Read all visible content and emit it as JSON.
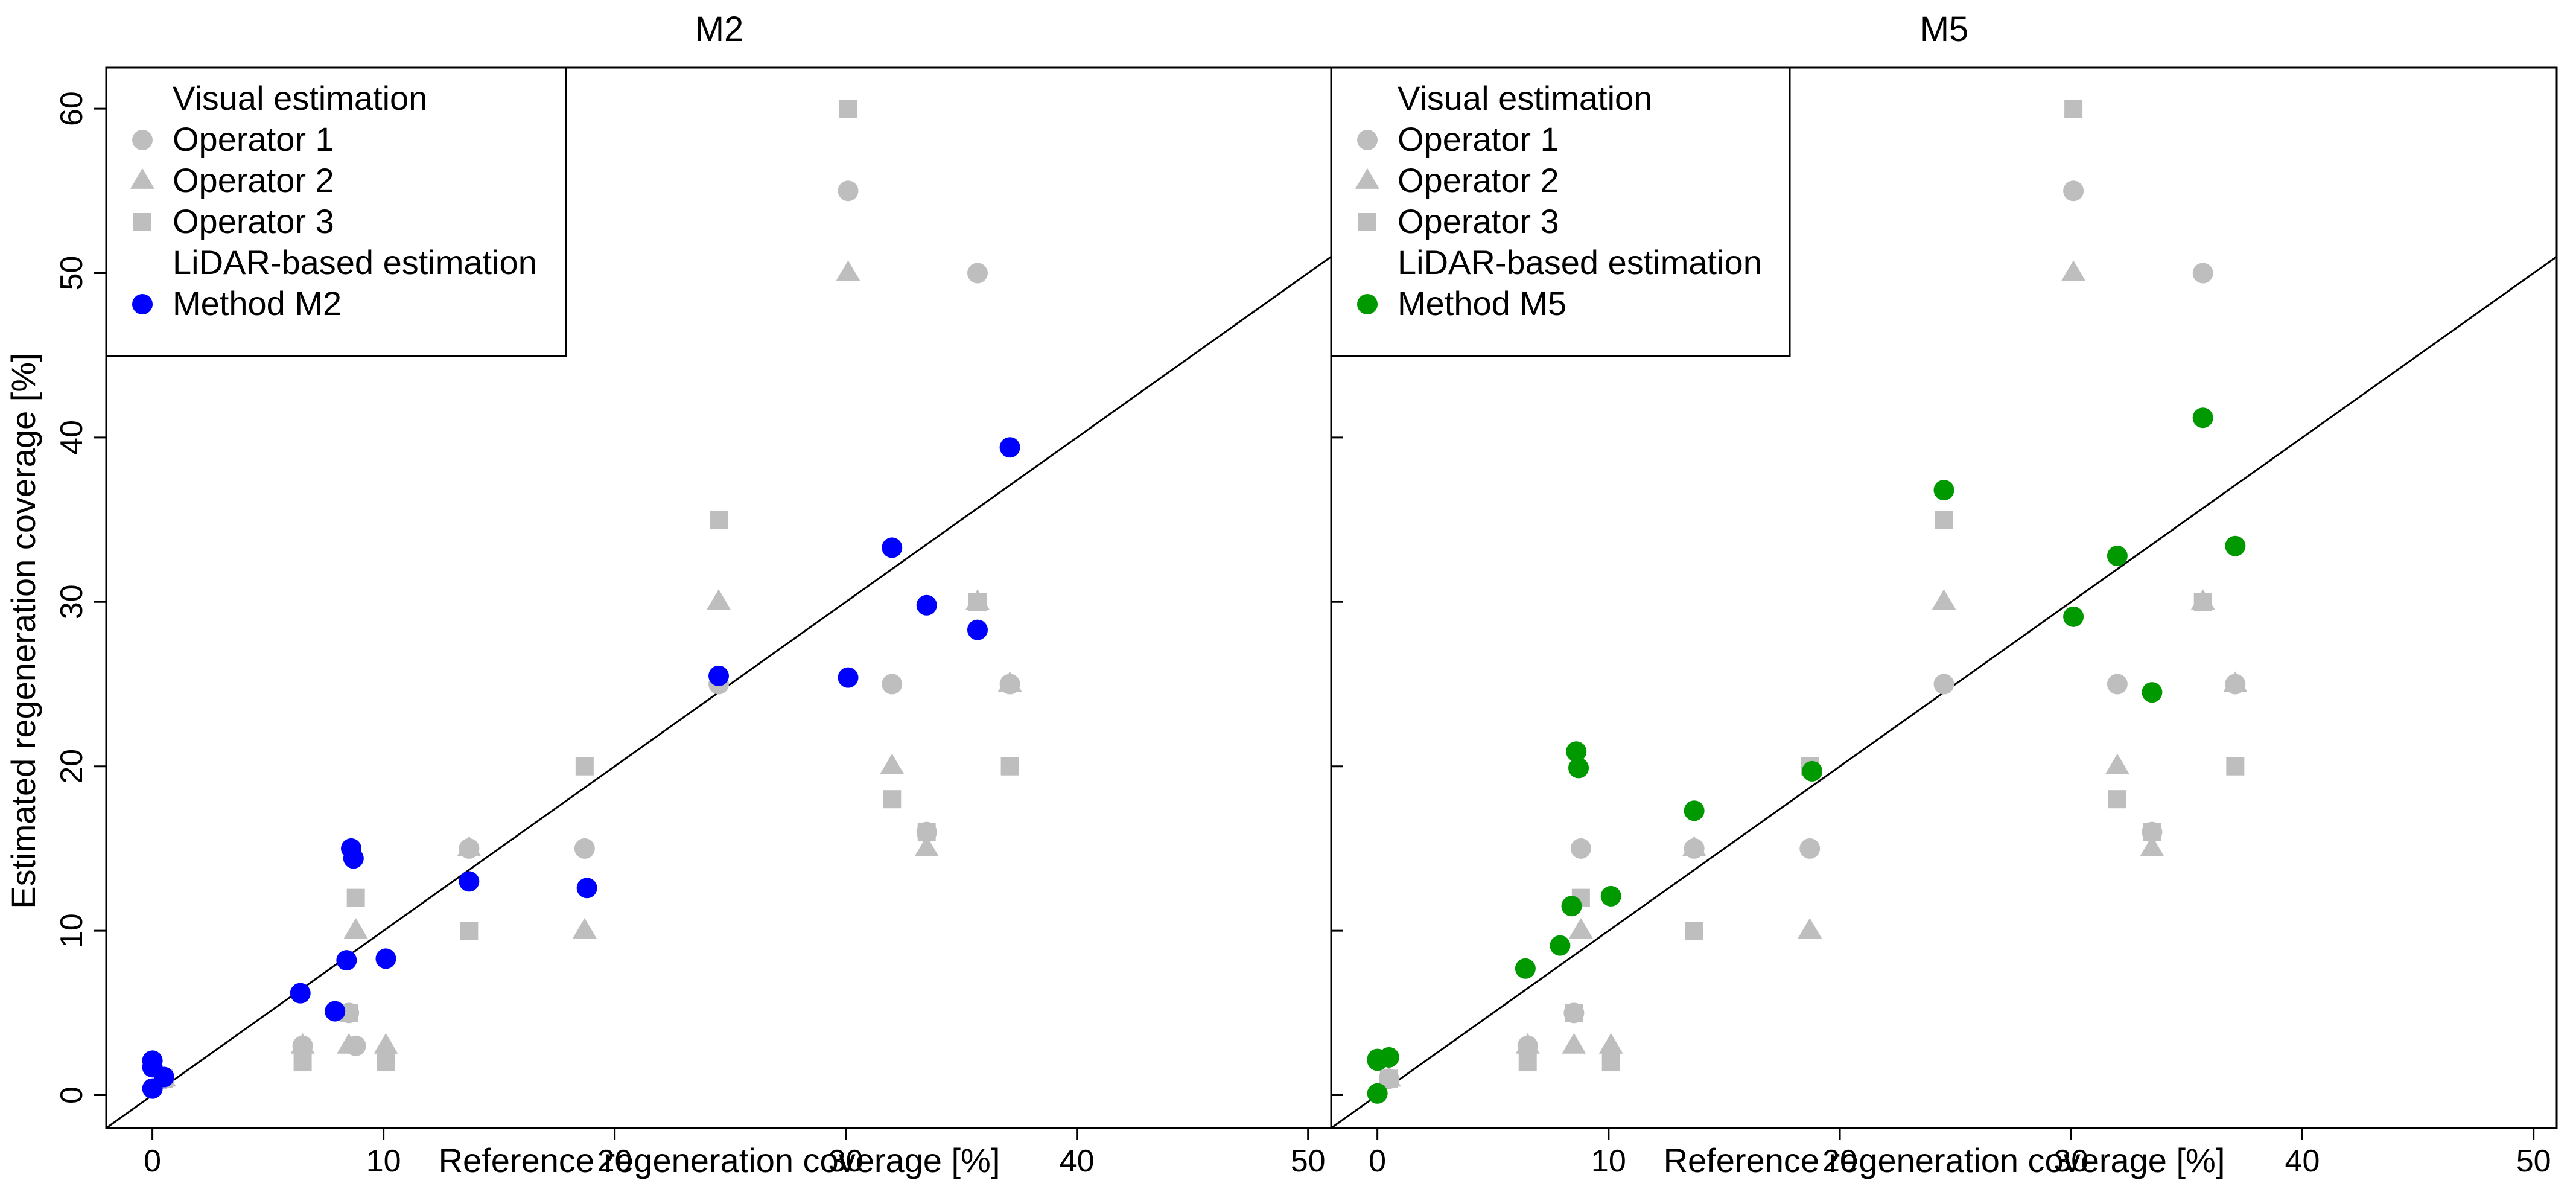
{
  "y_axis_title": "Estimated regeneration coverage [%]",
  "chart_data": [
    {
      "type": "scatter",
      "title": "M2",
      "xlabel": "Reference regeneration coverage [%]",
      "ylabel": "Estimated regeneration coverage [%]",
      "xlim": [
        -2,
        51
      ],
      "ylim": [
        -2,
        62.5
      ],
      "x_ticks": [
        "0",
        "10",
        "20",
        "30",
        "40",
        "50"
      ],
      "y_ticks": [
        "0",
        "10",
        "20",
        "30",
        "40",
        "50",
        "60"
      ],
      "legend": {
        "position": "top-left",
        "entries": [
          {
            "label": "Visual estimation",
            "kind": "header"
          },
          {
            "label": "Operator 1",
            "kind": "marker",
            "shape": "circle",
            "color": "#bebebe"
          },
          {
            "label": "Operator 2",
            "kind": "marker",
            "shape": "triangle",
            "color": "#bebebe"
          },
          {
            "label": "Operator 3",
            "kind": "marker",
            "shape": "square",
            "color": "#bebebe"
          },
          {
            "label": "LiDAR-based estimation",
            "kind": "header"
          },
          {
            "label": "Method M2",
            "kind": "marker",
            "shape": "circle",
            "color": "#0000ff"
          }
        ]
      },
      "reference_line": {
        "intercept": 0,
        "slope": 1
      },
      "series": [
        {
          "name": "Operator 1",
          "shape": "circle",
          "color": "#bebebe",
          "x": [
            0.5,
            6.5,
            8.5,
            8.8,
            13.7,
            18.7,
            24.5,
            30.1,
            32.0,
            33.5,
            35.7,
            37.1
          ],
          "y": [
            1,
            3,
            5,
            3,
            15,
            15,
            25,
            55,
            25,
            16,
            50,
            25
          ]
        },
        {
          "name": "Operator 2",
          "shape": "triangle",
          "color": "#bebebe",
          "x": [
            0.5,
            6.5,
            8.5,
            8.8,
            10.1,
            13.7,
            18.7,
            24.5,
            30.1,
            32.0,
            33.5,
            35.7,
            37.1
          ],
          "y": [
            1,
            3,
            3,
            10,
            3,
            15,
            10,
            30,
            50,
            20,
            15,
            30,
            25
          ]
        },
        {
          "name": "Operator 3",
          "shape": "square",
          "color": "#bebebe",
          "x": [
            0.5,
            6.5,
            8.5,
            8.8,
            10.1,
            13.7,
            18.7,
            24.5,
            30.1,
            32.0,
            33.5,
            35.7,
            37.1
          ],
          "y": [
            1,
            2,
            5,
            12,
            2,
            10,
            20,
            35,
            60,
            18,
            16,
            30,
            20
          ]
        },
        {
          "name": "Method M2",
          "shape": "circle",
          "color": "#0000ff",
          "x": [
            0.0,
            0.0,
            0.0,
            0.5,
            6.4,
            7.9,
            8.4,
            8.6,
            8.7,
            10.1,
            13.7,
            18.8,
            24.5,
            30.1,
            32.0,
            33.5,
            35.7,
            37.1
          ],
          "y": [
            0.4,
            1.7,
            2.1,
            1.1,
            6.2,
            5.1,
            8.2,
            15.0,
            14.4,
            8.3,
            13.0,
            12.6,
            25.5,
            25.4,
            33.3,
            29.8,
            28.3,
            39.4
          ]
        }
      ]
    },
    {
      "type": "scatter",
      "title": "M5",
      "xlabel": "Reference regeneration coverage [%]",
      "ylabel": "",
      "xlim": [
        -2,
        51
      ],
      "ylim": [
        -2,
        62.5
      ],
      "x_ticks": [
        "0",
        "10",
        "20",
        "30",
        "40",
        "50"
      ],
      "y_ticks": [],
      "legend": {
        "position": "top-left",
        "entries": [
          {
            "label": "Visual estimation",
            "kind": "header"
          },
          {
            "label": "Operator 1",
            "kind": "marker",
            "shape": "circle",
            "color": "#bebebe"
          },
          {
            "label": "Operator 2",
            "kind": "marker",
            "shape": "triangle",
            "color": "#bebebe"
          },
          {
            "label": "Operator 3",
            "kind": "marker",
            "shape": "square",
            "color": "#bebebe"
          },
          {
            "label": "LiDAR-based estimation",
            "kind": "header"
          },
          {
            "label": "Method M5",
            "kind": "marker",
            "shape": "circle",
            "color": "#009900"
          }
        ]
      },
      "reference_line": {
        "intercept": 0,
        "slope": 1
      },
      "series": [
        {
          "name": "Operator 1",
          "shape": "circle",
          "color": "#bebebe",
          "x": [
            0.5,
            6.5,
            8.5,
            8.8,
            13.7,
            18.7,
            24.5,
            30.1,
            32.0,
            33.5,
            35.7,
            37.1
          ],
          "y": [
            1,
            3,
            5,
            15,
            15,
            15,
            25,
            55,
            25,
            16,
            50,
            25
          ]
        },
        {
          "name": "Operator 2",
          "shape": "triangle",
          "color": "#bebebe",
          "x": [
            0.5,
            6.5,
            8.5,
            8.8,
            10.1,
            13.7,
            18.7,
            24.5,
            30.1,
            32.0,
            33.5,
            35.7,
            37.1
          ],
          "y": [
            1,
            3,
            3,
            10,
            3,
            15,
            10,
            30,
            50,
            20,
            15,
            30,
            25
          ]
        },
        {
          "name": "Operator 3",
          "shape": "square",
          "color": "#bebebe",
          "x": [
            0.5,
            6.5,
            8.5,
            8.8,
            10.1,
            13.7,
            18.7,
            24.5,
            30.1,
            32.0,
            33.5,
            35.7,
            37.1
          ],
          "y": [
            1,
            2,
            5,
            12,
            2,
            10,
            20,
            35,
            60,
            18,
            16,
            30,
            20
          ]
        },
        {
          "name": "Method M5",
          "shape": "circle",
          "color": "#009900",
          "x": [
            0.0,
            0.0,
            0.0,
            0.5,
            6.4,
            7.9,
            8.4,
            8.6,
            8.7,
            10.1,
            13.7,
            18.8,
            24.5,
            30.1,
            32.0,
            33.5,
            35.7,
            37.1
          ],
          "y": [
            0.1,
            2.1,
            2.2,
            2.3,
            7.7,
            9.1,
            11.5,
            20.9,
            19.9,
            12.1,
            17.3,
            19.7,
            36.8,
            29.1,
            32.8,
            24.5,
            41.2,
            33.4
          ]
        }
      ]
    }
  ]
}
